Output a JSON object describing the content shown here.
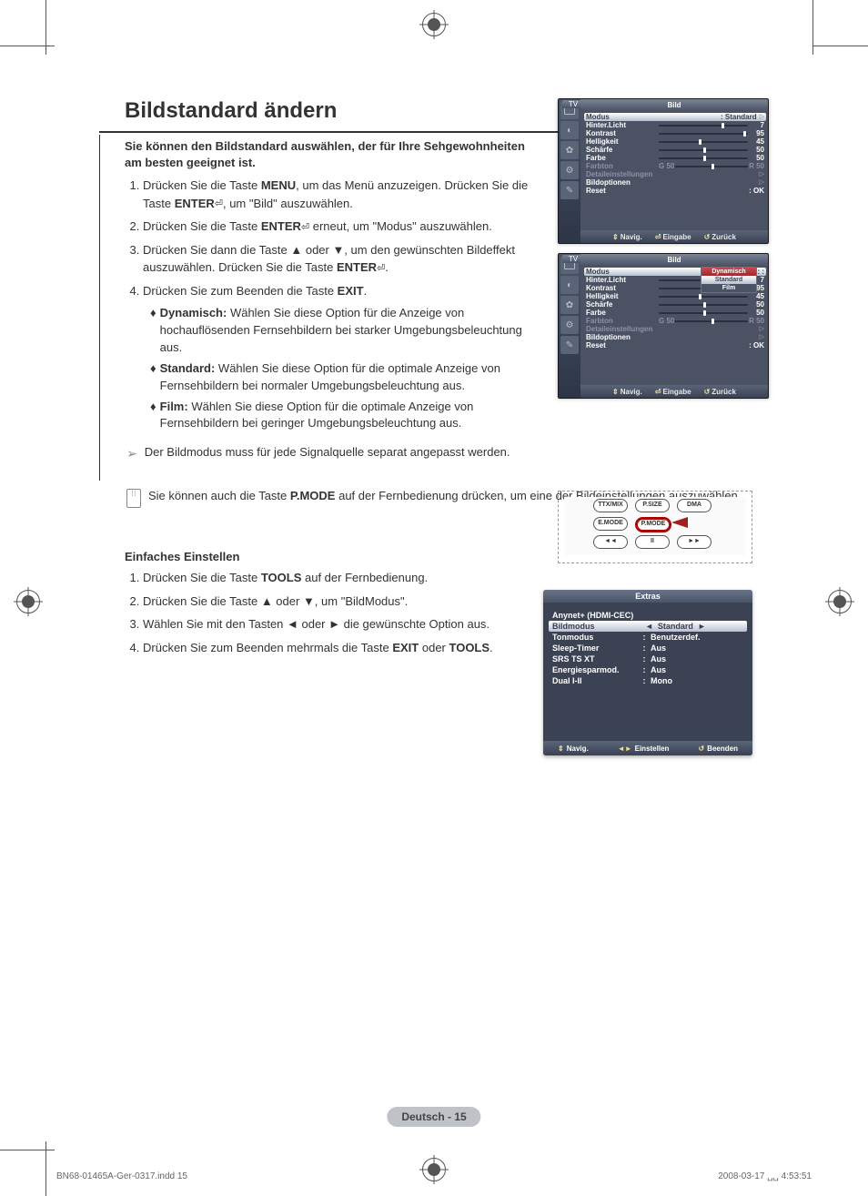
{
  "section_title": "Bildstandard ändern",
  "intro": "Sie können den Bildstandard auswählen, der für Ihre Sehgewohnheiten am besten geeignet ist.",
  "steps": [
    "Drücken Sie die Taste <b>MENU</b>, um das Menü anzuzeigen. Drücken Sie die Taste <b>ENTER</b><span class='enter-icon'>⏎</span>, um \"Bild\" auszuwählen.",
    "Drücken Sie die Taste <b>ENTER</b><span class='enter-icon'>⏎</span> erneut, um \"Modus\" auszuwählen.",
    "Drücken Sie dann die Taste ▲ oder ▼, um den gewünschten Bildeffekt auszuwählen. Drücken Sie die Taste <b>ENTER</b><span class='enter-icon'>⏎</span>.",
    "Drücken Sie zum Beenden die Taste <b>EXIT</b>."
  ],
  "bullets": [
    {
      "label": "Dynamisch:",
      "text": "Wählen Sie diese Option für die Anzeige von hochauflösenden Fernsehbildern bei starker Umgebungsbeleuchtung aus."
    },
    {
      "label": "Standard:",
      "text": "Wählen Sie diese Option für die optimale Anzeige von Fernsehbildern bei normaler Umgebungsbeleuchtung aus."
    },
    {
      "label": "Film:",
      "text": "Wählen Sie diese Option für die optimale Anzeige von Fernsehbildern bei geringer Umgebungsbeleuchtung aus."
    }
  ],
  "note1": "Der Bildmodus muss für jede Signalquelle separat angepasst werden.",
  "note2": "Sie können auch die Taste <b>P.MODE</b> auf der Fernbedienung drücken, um eine der Bildeinstellungen auszuwählen.",
  "sub_heading": "Einfaches Einstellen",
  "steps2": [
    "Drücken Sie die Taste <b>TOOLS</b> auf der Fernbedienung.",
    "Drücken Sie die Taste ▲ oder ▼, um \"BildModus\".",
    "Wählen Sie mit den Tasten ◄ oder ► die gewünschte Option aus.",
    "Drücken Sie zum Beenden mehrmals die Taste <b>EXIT</b> oder <b>TOOLS</b>."
  ],
  "osd": {
    "tv_label": "TV",
    "title": "Bild",
    "rows": [
      {
        "label": "Modus",
        "value_text": "Standard",
        "slider": null,
        "selected": true,
        "tri": true
      },
      {
        "label": "Hinter.Licht",
        "value": "7",
        "slider": 70
      },
      {
        "label": "Kontrast",
        "value": "95",
        "slider": 95
      },
      {
        "label": "Helligkeit",
        "value": "45",
        "slider": 45
      },
      {
        "label": "Schärfe",
        "value": "50",
        "slider": 50
      },
      {
        "label": "Farbe",
        "value": "50",
        "slider": 50
      },
      {
        "label": "Farbton",
        "gr_left": "G 50",
        "gr_right": "R 50",
        "slider": 50,
        "dim": true
      },
      {
        "label": "Detaileinstellungen",
        "tri": true,
        "dim": true
      },
      {
        "label": "Bildoptionen",
        "tri": true
      },
      {
        "label": "Reset",
        "value_text": "OK",
        "colon": true
      }
    ],
    "footer": [
      {
        "sym": "⇕",
        "text": "Navig."
      },
      {
        "sym": "⏎",
        "text": "Eingabe"
      },
      {
        "sym": "↺",
        "text": "Zurück"
      }
    ]
  },
  "osd2_dropdown": [
    "Dynamisch",
    "Standard",
    "Film"
  ],
  "remote_buttons": {
    "r1": [
      "TTX/MIX",
      "P.SIZE",
      "DMA"
    ],
    "r2": [
      "E.MODE",
      "P.MODE",
      ""
    ],
    "r3": [
      "◄◄",
      "II",
      "►►"
    ]
  },
  "extras": {
    "title": "Extras",
    "top_item": "Anynet+ (HDMI-CEC)",
    "rows": [
      {
        "label": "Bildmodus",
        "value": "Standard",
        "selected": true
      },
      {
        "label": "Tonmodus",
        "value": "Benutzerdef."
      },
      {
        "label": "Sleep-Timer",
        "value": "Aus"
      },
      {
        "label": "SRS TS XT",
        "value": "Aus"
      },
      {
        "label": "Energiesparmod.",
        "value": "Aus"
      },
      {
        "label": "Dual I-II",
        "value": "Mono"
      }
    ],
    "footer": [
      {
        "sym": "⇕",
        "text": "Navig."
      },
      {
        "sym": "◄►",
        "text": "Einstellen"
      },
      {
        "sym": "↺",
        "text": "Beenden"
      }
    ]
  },
  "page_num": "Deutsch - 15",
  "footer_left": "BN68-01465A-Ger-0317.indd   15",
  "footer_right": "2008-03-17   ␣␣ 4:53:51"
}
